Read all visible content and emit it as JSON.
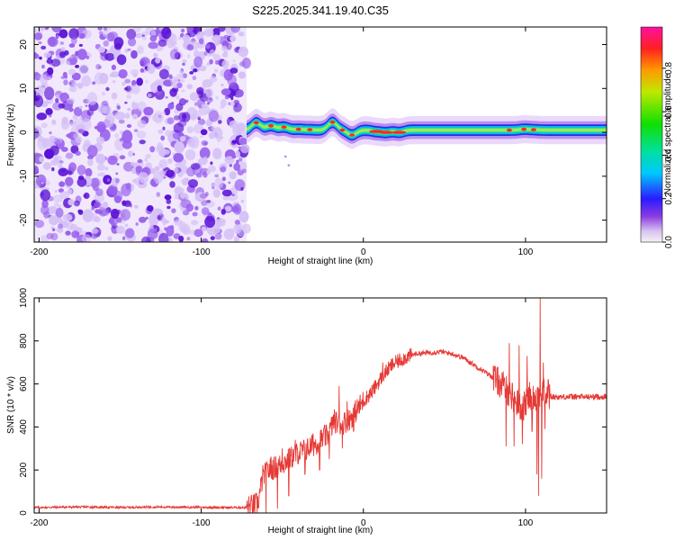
{
  "title": "S225.2025.341.19.40.C35",
  "chart_data": [
    {
      "type": "heatmap",
      "name": "spectrogram",
      "xlabel": "Height of straight line (km)",
      "ylabel": "Frequency (Hz)",
      "xlim": [
        -203,
        150
      ],
      "ylim": [
        -25,
        24
      ],
      "xticks": [
        -200,
        -100,
        0,
        100
      ],
      "yticks": [
        -20,
        -10,
        0,
        10,
        20
      ],
      "noise_region_x": [
        -203,
        -72
      ],
      "signal_start_x": -72,
      "signal_band_hz": 0.5,
      "hot_spots": [
        {
          "x": -66,
          "y": 2.2
        },
        {
          "x": -57,
          "y": 1.5
        },
        {
          "x": -49,
          "y": 1.2
        },
        {
          "x": -40,
          "y": 0.7
        },
        {
          "x": -33,
          "y": 0.6
        },
        {
          "x": -19,
          "y": 2.3
        },
        {
          "x": -13,
          "y": 0.5
        },
        {
          "x": -7,
          "y": -0.6
        },
        {
          "x": 8,
          "y": 0.2
        },
        {
          "x": 14,
          "y": 0.0
        },
        {
          "x": 22,
          "y": 0.0
        },
        {
          "x": 90,
          "y": 0.5
        },
        {
          "x": 99,
          "y": 0.7
        },
        {
          "x": 105,
          "y": 0.6
        }
      ]
    },
    {
      "type": "line",
      "name": "snr",
      "xlabel": "Height of straight line (km)",
      "ylabel": "SNR (10 * v/v)",
      "xlim": [
        -203,
        150
      ],
      "ylim": [
        0,
        1000
      ],
      "xticks": [
        -200,
        -100,
        0,
        100
      ],
      "yticks": [
        0,
        200,
        400,
        600,
        800,
        1000
      ],
      "series": [
        {
          "name": "SNR",
          "color": "#e53935",
          "x": [
            -203,
            -190,
            -170,
            -150,
            -130,
            -110,
            -90,
            -72,
            -65,
            -62,
            -58,
            -52,
            -46,
            -40,
            -34,
            -28,
            -22,
            -18,
            -15,
            -12,
            -8,
            -4,
            0,
            6,
            12,
            18,
            25,
            32,
            40,
            48,
            55,
            62,
            70,
            78,
            85,
            90,
            94,
            98,
            102,
            106,
            108,
            110,
            112,
            116,
            125,
            135,
            150
          ],
          "values": [
            25,
            27,
            28,
            26,
            28,
            27,
            26,
            25,
            45,
            170,
            200,
            220,
            250,
            280,
            300,
            330,
            360,
            430,
            410,
            420,
            440,
            480,
            520,
            570,
            640,
            690,
            720,
            740,
            745,
            750,
            740,
            720,
            680,
            640,
            600,
            560,
            520,
            480,
            540,
            540,
            560,
            560,
            550,
            540,
            540,
            540,
            540
          ],
          "spikes": [
            {
              "x": -60,
              "y": 0
            },
            {
              "x": -57,
              "y": 260
            },
            {
              "x": -53,
              "y": 20
            },
            {
              "x": -50,
              "y": 300
            },
            {
              "x": -46,
              "y": 80
            },
            {
              "x": -42,
              "y": 340
            },
            {
              "x": -36,
              "y": 180
            },
            {
              "x": -31,
              "y": 370
            },
            {
              "x": -27,
              "y": 200
            },
            {
              "x": -24,
              "y": 410
            },
            {
              "x": -21,
              "y": 250
            },
            {
              "x": -15,
              "y": 590
            },
            {
              "x": -13,
              "y": 300
            },
            {
              "x": -10,
              "y": 520
            },
            {
              "x": -6,
              "y": 380
            },
            {
              "x": 12,
              "y": 700
            },
            {
              "x": 88,
              "y": 310
            },
            {
              "x": 90,
              "y": 790
            },
            {
              "x": 93,
              "y": 310
            },
            {
              "x": 96,
              "y": 780
            },
            {
              "x": 98,
              "y": 320
            },
            {
              "x": 101,
              "y": 730
            },
            {
              "x": 104,
              "y": 380
            },
            {
              "x": 107,
              "y": 180
            },
            {
              "x": 108,
              "y": 80
            },
            {
              "x": 109,
              "y": 1000
            },
            {
              "x": 110,
              "y": 160
            },
            {
              "x": 111,
              "y": 700
            },
            {
              "x": 112,
              "y": 390
            },
            {
              "x": 114,
              "y": 620
            }
          ]
        }
      ]
    }
  ],
  "colorbar": {
    "label": "Normalized spectral amplitude",
    "ticks": [
      0.0,
      0.2,
      0.4,
      0.6,
      0.8
    ],
    "range": [
      0,
      0.99
    ]
  }
}
